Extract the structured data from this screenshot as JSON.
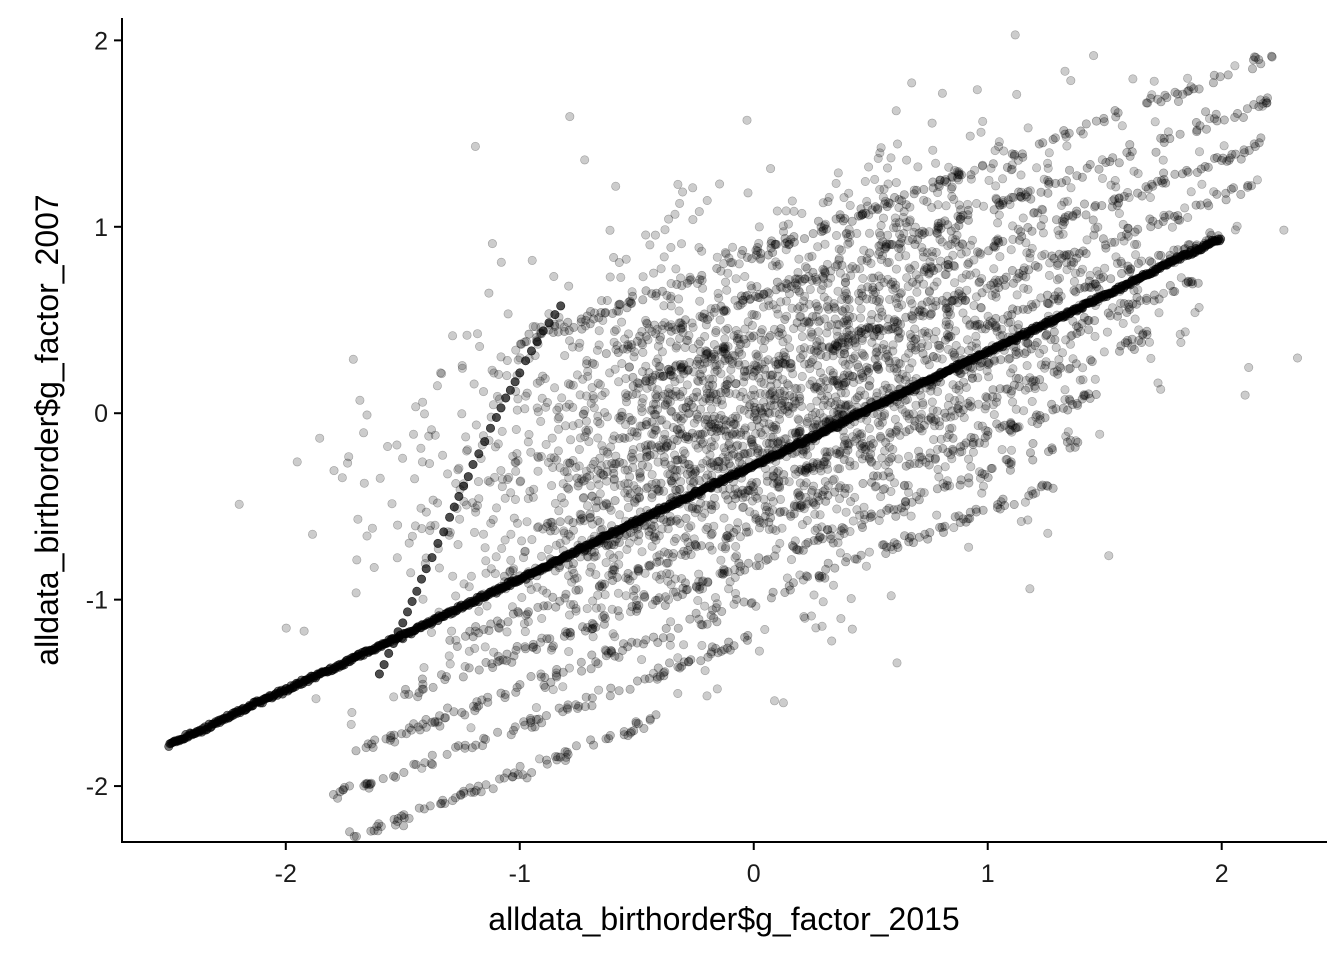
{
  "chart_data": {
    "type": "scatter",
    "title": "",
    "xlabel": "alldata_birthorder$g_factor_2015",
    "ylabel": "alldata_birthorder$g_factor_2007",
    "xlim": [
      -2.7,
      2.45
    ],
    "ylim": [
      -2.3,
      2.12
    ],
    "x_ticks": [
      -2,
      -1,
      0,
      1,
      2
    ],
    "y_ticks": [
      -2,
      -1,
      0,
      1,
      2
    ],
    "x_tick_labels": [
      "-2",
      "-1",
      "0",
      "1",
      "2"
    ],
    "y_tick_labels": [
      "-2",
      "-1",
      "0",
      "1",
      "2"
    ],
    "grid": false,
    "legend": "none",
    "point_color": "#000000",
    "point_opacity": 0.2,
    "diagonal_line": {
      "x": [
        -2.5,
        -2.2,
        -1.8,
        -1.5,
        -1.2,
        -0.9,
        -0.6,
        -0.3,
        0.0,
        0.3,
        0.6,
        0.9,
        1.2,
        1.5,
        1.8,
        2.0
      ],
      "y": [
        -1.78,
        -1.6,
        -1.37,
        -1.19,
        -1.01,
        -0.83,
        -0.64,
        -0.46,
        -0.28,
        -0.1,
        0.09,
        0.27,
        0.45,
        0.63,
        0.82,
        0.94
      ]
    },
    "steep_line": {
      "x": [
        -1.6,
        -1.5,
        -1.4,
        -1.3,
        -1.2,
        -1.1,
        -1.0,
        -0.9,
        -0.8
      ],
      "y": [
        -1.4,
        -1.12,
        -0.84,
        -0.56,
        -0.28,
        -0.02,
        0.22,
        0.44,
        0.62
      ]
    },
    "bands": [
      {
        "slope": 0.48,
        "intercept": 0.85,
        "x_range": [
          -1.05,
          2.22
        ]
      },
      {
        "slope": 0.48,
        "intercept": 0.62,
        "x_range": [
          -0.75,
          2.2
        ]
      },
      {
        "slope": 0.48,
        "intercept": 0.4,
        "x_range": [
          -0.55,
          2.2
        ]
      },
      {
        "slope": 0.48,
        "intercept": 0.2,
        "x_range": [
          -0.45,
          2.15
        ]
      },
      {
        "slope": 0.48,
        "intercept": 0.0,
        "x_range": [
          -0.8,
          2.0
        ]
      },
      {
        "slope": 0.48,
        "intercept": -0.2,
        "x_range": [
          -0.9,
          1.9
        ]
      },
      {
        "slope": 0.48,
        "intercept": -0.4,
        "x_range": [
          -1.1,
          1.7
        ]
      },
      {
        "slope": 0.48,
        "intercept": -0.6,
        "x_range": [
          -1.3,
          1.5
        ]
      },
      {
        "slope": 0.48,
        "intercept": -0.8,
        "x_range": [
          -1.5,
          1.4
        ]
      },
      {
        "slope": 0.48,
        "intercept": -1.0,
        "x_range": [
          -1.7,
          1.3
        ]
      },
      {
        "slope": 0.48,
        "intercept": -1.2,
        "x_range": [
          -1.8,
          0.0
        ]
      },
      {
        "slope": 0.48,
        "intercept": -1.45,
        "x_range": [
          -2.2,
          -0.4
        ]
      }
    ],
    "scatter_cloud": {
      "n_points": 2600,
      "x_mean": 0.1,
      "x_sd": 0.75,
      "slope": 0.45,
      "intercept": 0.05,
      "y_sd": 0.5
    }
  }
}
